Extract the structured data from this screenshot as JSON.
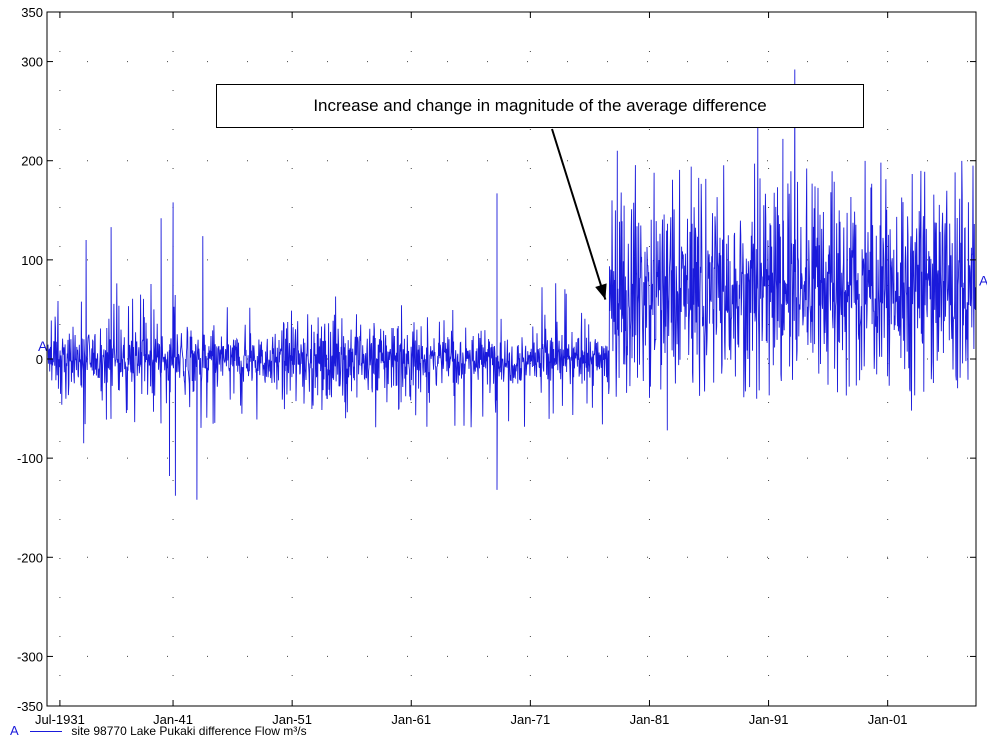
{
  "chart_data": {
    "type": "line",
    "title": "",
    "ylim": [
      -350,
      350
    ],
    "y_ticks": [
      -350,
      -300,
      -200,
      -100,
      0,
      100,
      200,
      300,
      350
    ],
    "y_tick_labels": [
      "-350",
      "-300",
      "-200",
      "-100",
      "0",
      "100",
      "200",
      "300",
      "350"
    ],
    "x_range": [
      "1930-06",
      "2008-06"
    ],
    "x_ticks": [
      "1931-07",
      "1941-01",
      "1951-01",
      "1961-01",
      "1971-01",
      "1981-01",
      "1991-01",
      "2001-01"
    ],
    "x_tick_labels": [
      "Jul-1931",
      "Jan-41",
      "Jan-51",
      "Jan-61",
      "Jan-71",
      "Jan-81",
      "Jan-91",
      "Jan-01"
    ],
    "grid": true,
    "series": [
      {
        "name": "site 98770 Lake Pukaki difference  Flow m³/s",
        "marker": "A",
        "color": "#1a1adb",
        "mean_by_period": [
          {
            "from": 1930.5,
            "to": 1977.6,
            "mean": 0
          },
          {
            "from": 1977.6,
            "to": 2008.5,
            "mean": 70
          }
        ],
        "peaks": [
          {
            "x": 1933.7,
            "y": 120
          },
          {
            "x": 1935.8,
            "y": 133
          },
          {
            "x": 1940.0,
            "y": 142
          },
          {
            "x": 1941.0,
            "y": 158
          },
          {
            "x": 1943.5,
            "y": 124
          },
          {
            "x": 1968.2,
            "y": 167
          },
          {
            "x": 1978.3,
            "y": 210
          },
          {
            "x": 1990.1,
            "y": 240
          },
          {
            "x": 1993.2,
            "y": 292
          },
          {
            "x": 1992.2,
            "y": 222
          }
        ],
        "troughs": [
          {
            "x": 1933.5,
            "y": -85
          },
          {
            "x": 1940.7,
            "y": -118
          },
          {
            "x": 1941.2,
            "y": -138
          },
          {
            "x": 1943.0,
            "y": -142
          },
          {
            "x": 1968.2,
            "y": -132
          },
          {
            "x": 1982.5,
            "y": -72
          },
          {
            "x": 1990.0,
            "y": -40
          },
          {
            "x": 2003.0,
            "y": -52
          }
        ]
      }
    ],
    "annotations": [
      {
        "text": "Increase and change in magnitude of the average difference",
        "arrow_to": {
          "x": 1977.3,
          "y": 60
        }
      }
    ],
    "legend_position": "bottom-left",
    "series_marker_left": "A",
    "series_marker_right": "A"
  },
  "legend": {
    "marker": "A",
    "label": "site 98770 Lake Pukaki difference   Flow m³/s"
  },
  "callout": {
    "text": "Increase and change in magnitude of the average difference"
  }
}
